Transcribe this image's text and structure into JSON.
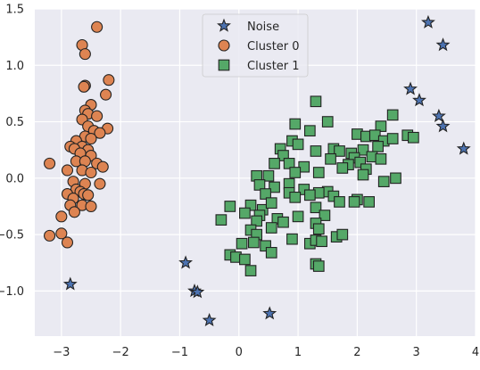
{
  "chart_data": {
    "type": "scatter",
    "title": "",
    "xlabel": "",
    "ylabel": "",
    "xlim": [
      -3.45,
      4.0
    ],
    "ylim": [
      -1.4,
      1.5
    ],
    "xticks": [
      -3,
      -2,
      -1,
      0,
      1,
      2,
      3,
      4
    ],
    "xtick_labels": [
      "−3",
      "−2",
      "−1",
      "0",
      "1",
      "2",
      "3",
      "4"
    ],
    "yticks": [
      -1.0,
      -0.5,
      0.0,
      0.5,
      1.0,
      1.5
    ],
    "ytick_labels": [
      "−1.0",
      "−0.5",
      "0.0",
      "0.5",
      "1.0",
      "1.5"
    ],
    "grid": true,
    "legend_placement": "upper-center",
    "background": "#eaeaf2",
    "series": [
      {
        "name": "Noise",
        "marker": "star",
        "color": "#4c72b0",
        "points": [
          [
            -2.85,
            -0.94
          ],
          [
            -0.9,
            -0.75
          ],
          [
            -0.75,
            -1.0
          ],
          [
            -0.7,
            -1.01
          ],
          [
            -0.5,
            -1.26
          ],
          [
            0.52,
            -1.2
          ],
          [
            3.2,
            1.38
          ],
          [
            3.45,
            1.18
          ],
          [
            2.9,
            0.79
          ],
          [
            3.05,
            0.69
          ],
          [
            3.38,
            0.55
          ],
          [
            3.45,
            0.46
          ],
          [
            3.8,
            0.26
          ]
        ]
      },
      {
        "name": "Cluster 0",
        "marker": "circle",
        "color": "#dd8452",
        "points": [
          [
            -2.4,
            1.34
          ],
          [
            -2.65,
            1.18
          ],
          [
            -2.6,
            1.1
          ],
          [
            -2.2,
            0.87
          ],
          [
            -2.6,
            0.82
          ],
          [
            -2.62,
            0.81
          ],
          [
            -2.25,
            0.74
          ],
          [
            -2.5,
            0.65
          ],
          [
            -2.6,
            0.6
          ],
          [
            -2.55,
            0.57
          ],
          [
            -2.4,
            0.55
          ],
          [
            -2.65,
            0.52
          ],
          [
            -2.55,
            0.46
          ],
          [
            -2.22,
            0.44
          ],
          [
            -2.45,
            0.42
          ],
          [
            -2.35,
            0.4
          ],
          [
            -2.6,
            0.37
          ],
          [
            -2.5,
            0.35
          ],
          [
            -2.75,
            0.33
          ],
          [
            -2.85,
            0.28
          ],
          [
            -2.65,
            0.28
          ],
          [
            -2.78,
            0.26
          ],
          [
            -2.55,
            0.25
          ],
          [
            -2.68,
            0.22
          ],
          [
            -2.5,
            0.2
          ],
          [
            -2.75,
            0.15
          ],
          [
            -2.6,
            0.15
          ],
          [
            -2.4,
            0.13
          ],
          [
            -2.3,
            0.1
          ],
          [
            -3.2,
            0.13
          ],
          [
            -2.9,
            0.07
          ],
          [
            -2.65,
            0.07
          ],
          [
            -2.5,
            0.05
          ],
          [
            -2.8,
            -0.03
          ],
          [
            -2.6,
            -0.05
          ],
          [
            -2.35,
            -0.05
          ],
          [
            -2.75,
            -0.1
          ],
          [
            -2.68,
            -0.12
          ],
          [
            -2.9,
            -0.14
          ],
          [
            -2.62,
            -0.14
          ],
          [
            -2.55,
            -0.15
          ],
          [
            -2.8,
            -0.18
          ],
          [
            -2.85,
            -0.24
          ],
          [
            -2.65,
            -0.24
          ],
          [
            -2.5,
            -0.25
          ],
          [
            -2.78,
            -0.3
          ],
          [
            -3.0,
            -0.34
          ],
          [
            -3.2,
            -0.51
          ],
          [
            -3.0,
            -0.49
          ],
          [
            -2.9,
            -0.57
          ]
        ]
      },
      {
        "name": "Cluster 1",
        "marker": "square",
        "color": "#55a868",
        "points": [
          [
            1.3,
            0.68
          ],
          [
            0.95,
            0.48
          ],
          [
            1.2,
            0.42
          ],
          [
            1.5,
            0.5
          ],
          [
            2.6,
            0.56
          ],
          [
            2.4,
            0.46
          ],
          [
            2.0,
            0.39
          ],
          [
            2.15,
            0.37
          ],
          [
            2.3,
            0.38
          ],
          [
            2.45,
            0.33
          ],
          [
            2.6,
            0.35
          ],
          [
            2.85,
            0.38
          ],
          [
            2.95,
            0.36
          ],
          [
            0.9,
            0.33
          ],
          [
            0.7,
            0.26
          ],
          [
            1.0,
            0.3
          ],
          [
            1.3,
            0.24
          ],
          [
            1.6,
            0.26
          ],
          [
            1.7,
            0.24
          ],
          [
            2.1,
            0.25
          ],
          [
            2.35,
            0.28
          ],
          [
            1.9,
            0.22
          ],
          [
            1.95,
            0.18
          ],
          [
            2.25,
            0.19
          ],
          [
            0.75,
            0.2
          ],
          [
            1.55,
            0.17
          ],
          [
            1.85,
            0.12
          ],
          [
            2.05,
            0.14
          ],
          [
            2.4,
            0.17
          ],
          [
            0.6,
            0.13
          ],
          [
            0.85,
            0.13
          ],
          [
            1.1,
            0.1
          ],
          [
            1.75,
            0.09
          ],
          [
            2.15,
            0.08
          ],
          [
            0.3,
            0.02
          ],
          [
            0.5,
            0.02
          ],
          [
            0.95,
            0.05
          ],
          [
            1.35,
            0.05
          ],
          [
            2.1,
            0.03
          ],
          [
            2.65,
            0.0
          ],
          [
            0.35,
            -0.06
          ],
          [
            0.6,
            -0.08
          ],
          [
            0.85,
            -0.05
          ],
          [
            1.1,
            -0.1
          ],
          [
            1.5,
            -0.12
          ],
          [
            2.45,
            -0.03
          ],
          [
            0.45,
            -0.14
          ],
          [
            0.85,
            -0.13
          ],
          [
            1.35,
            -0.13
          ],
          [
            1.6,
            -0.16
          ],
          [
            1.2,
            -0.15
          ],
          [
            2.0,
            -0.19
          ],
          [
            2.2,
            -0.21
          ],
          [
            -0.15,
            -0.25
          ],
          [
            0.2,
            -0.24
          ],
          [
            0.4,
            -0.28
          ],
          [
            0.55,
            -0.22
          ],
          [
            0.95,
            -0.17
          ],
          [
            1.3,
            -0.26
          ],
          [
            1.7,
            -0.21
          ],
          [
            1.95,
            -0.21
          ],
          [
            0.1,
            -0.31
          ],
          [
            0.35,
            -0.33
          ],
          [
            1.0,
            -0.34
          ],
          [
            1.45,
            -0.33
          ],
          [
            -0.3,
            -0.37
          ],
          [
            0.3,
            -0.38
          ],
          [
            0.65,
            -0.36
          ],
          [
            1.3,
            -0.4
          ],
          [
            0.2,
            -0.46
          ],
          [
            0.55,
            -0.44
          ],
          [
            0.75,
            -0.39
          ],
          [
            1.35,
            -0.45
          ],
          [
            0.3,
            -0.5
          ],
          [
            0.9,
            -0.54
          ],
          [
            1.2,
            -0.58
          ],
          [
            1.65,
            -0.52
          ],
          [
            1.75,
            -0.5
          ],
          [
            0.05,
            -0.58
          ],
          [
            0.25,
            -0.57
          ],
          [
            1.3,
            -0.55
          ],
          [
            1.4,
            -0.56
          ],
          [
            0.45,
            -0.6
          ],
          [
            0.55,
            -0.66
          ],
          [
            -0.15,
            -0.68
          ],
          [
            -0.05,
            -0.7
          ],
          [
            0.1,
            -0.72
          ],
          [
            0.2,
            -0.82
          ],
          [
            1.3,
            -0.76
          ],
          [
            1.35,
            -0.78
          ]
        ]
      }
    ]
  }
}
